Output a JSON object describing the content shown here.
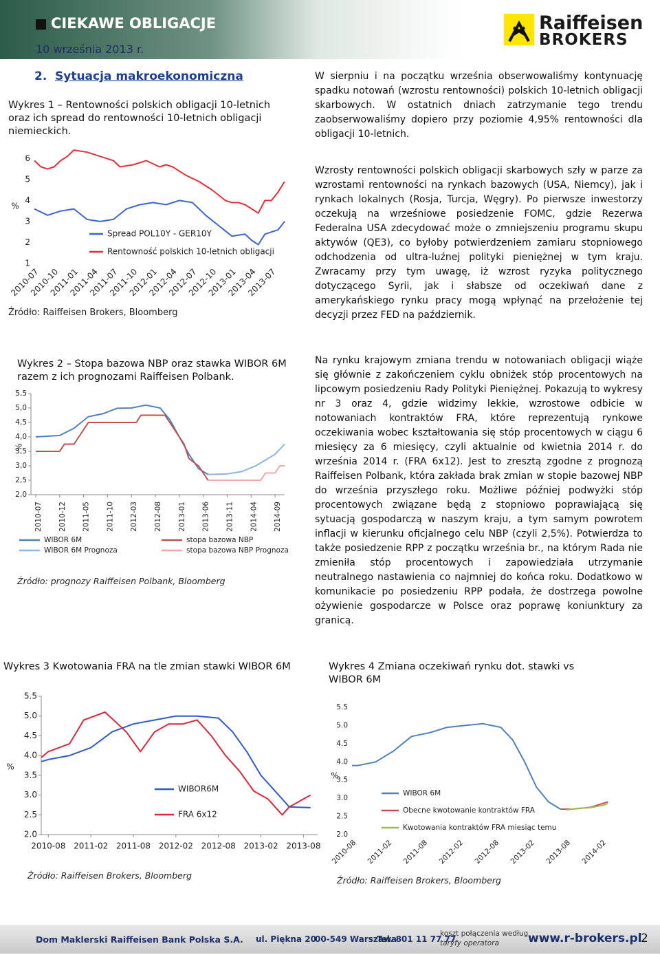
{
  "header": {
    "title": "CIEKAWE OBLIGACJE",
    "date": "10 września 2013 r.",
    "logo_line1": "Raiffeisen",
    "logo_line2": "BROKERS"
  },
  "section": {
    "number": "2.",
    "title": "Sytuacja makroekonomiczna"
  },
  "paragraphs": [
    "W sierpniu i na początku września obserwowaliśmy kontynuację spadku notowań (wzrostu rentowności) polskich 10-letnich obligacji skarbowych. W ostatnich dniach zatrzymanie tego trendu zaobserwowaliśmy dopiero przy poziomie 4,95% rentowności dla obligacji 10-letnich.",
    "Wzrosty rentowności polskich obligacji skarbowych szły w parze za wzrostami rentowności na rynkach bazowych (USA, Niemcy), jak i rynkach lokalnych (Rosja, Turcja, Węgry). Po pierwsze inwestorzy oczekują na wrześniowe posiedzenie FOMC, gdzie Rezerwa Federalna USA zdecydować może o zmniejszeniu programu skupu aktywów (QE3), co byłoby potwierdzeniem zamiaru stopniowego odchodzenia od ultra-luźnej polityki pieniężnej w tym kraju. Zwracamy przy tym uwagę, iż wzrost ryzyka politycznego dotyczącego Syrii, jak i słabsze od oczekiwań dane z amerykańskiego rynku pracy mogą wpłynąć na przełożenie tej decyzji przez FED na październik.",
    "Na rynku krajowym zmiana trendu w notowaniach obligacji wiąże się głównie z zakończeniem cyklu obniżek stóp procentowych na lipcowym posiedzeniu Rady Polityki Pieniężnej. Pokazują to wykresy nr 3 oraz 4, gdzie widzimy lekkie, wzrostowe odbicie w notowaniach kontraktów FRA, które reprezentują rynkowe oczekiwania wobec kształtowania się stóp procentowych w ciągu 6 miesięcy za 6 miesięcy, czyli aktualnie od kwietnia 2014 r. do września 2014 r. (FRA 6x12). Jest to zresztą zgodne z prognozą Raiffeisen Polbank, która zakłada brak zmian w stopie bazowej NBP do września przyszłego roku. Możliwe później podwyżki stóp procentowych związane będą z stopniowo poprawiającą się sytuacją gospodarczą w naszym kraju, a tym samym powrotem inflacji w kierunku oficjalnego celu NBP (czyli 2,5%). Potwierdza to także posiedzenie RPP z początku września br., na którym Rada nie zmieniła stóp procentowych i zapowiedziała utrzymanie neutralnego nastawienia co najmniej do końca roku. Dodatkowo w komunikacie po posiedzeniu RPP podała, że dostrzega powolne ożywienie gospodarcze w Polsce oraz poprawę koniunktury za granicą."
  ],
  "chart_data": [
    {
      "type": "line",
      "title": "Wykres 1 – Rentowności polskich obligacji 10-letnich oraz ich spread do rentowności 10-letnich obligacji niemieckich.",
      "source": "Źródło: Raiffeisen Brokers, Bloomberg",
      "y_label": "%",
      "xlim": [
        "2010-07",
        "2013-09"
      ],
      "xticks": [
        "2010-07",
        "2010-10",
        "2011-01",
        "2011-04",
        "2011-07",
        "2011-10",
        "2012-01",
        "2012-04",
        "2012-07",
        "2012-10",
        "2013-01",
        "2013-04",
        "2013-07"
      ],
      "ylim": [
        1,
        6.6
      ],
      "yticks": [
        1,
        2,
        3,
        4,
        5,
        6
      ],
      "series": [
        {
          "name": "Spread POL10Y - GER10Y",
          "color": "#3d62d6",
          "x": [
            "2010-07",
            "2010-09",
            "2010-11",
            "2011-01",
            "2011-03",
            "2011-05",
            "2011-07",
            "2011-09",
            "2011-11",
            "2012-01",
            "2012-03",
            "2012-05",
            "2012-07",
            "2012-09",
            "2012-11",
            "2013-01",
            "2013-03",
            "2013-04",
            "2013-05",
            "2013-06",
            "2013-07",
            "2013-08",
            "2013-09"
          ],
          "values": [
            3.6,
            3.3,
            3.5,
            3.6,
            3.1,
            3.0,
            3.1,
            3.6,
            3.8,
            3.9,
            3.8,
            4.0,
            3.9,
            3.3,
            2.8,
            2.3,
            2.4,
            2.1,
            1.9,
            2.4,
            2.5,
            2.6,
            3.0
          ]
        },
        {
          "name": "Rentowność polskich 10-letnich obligacji",
          "color": "#e0303a",
          "x": [
            "2010-07",
            "2010-08",
            "2010-09",
            "2010-10",
            "2010-11",
            "2010-12",
            "2011-01",
            "2011-03",
            "2011-05",
            "2011-07",
            "2011-08",
            "2011-10",
            "2011-12",
            "2012-02",
            "2012-03",
            "2012-04",
            "2012-06",
            "2012-08",
            "2012-10",
            "2012-12",
            "2013-01",
            "2013-02",
            "2013-03",
            "2013-04",
            "2013-05",
            "2013-06",
            "2013-07",
            "2013-08",
            "2013-09"
          ],
          "values": [
            5.9,
            5.6,
            5.5,
            5.6,
            5.9,
            6.1,
            6.4,
            6.3,
            6.1,
            5.9,
            5.6,
            5.7,
            5.9,
            5.6,
            5.7,
            5.6,
            5.2,
            4.9,
            4.5,
            4.0,
            3.9,
            3.9,
            3.8,
            3.6,
            3.4,
            4.0,
            4.0,
            4.4,
            4.9
          ]
        }
      ]
    },
    {
      "type": "line",
      "title": "Wykres 2 – Stopa bazowa NBP oraz stawka WIBOR 6M razem z ich prognozami Raiffeisen Polbank.",
      "source": "Źródło: prognozy Raiffeisen Polbank, Bloomberg",
      "y_label": "%",
      "xlim": [
        "2010-06",
        "2014-11"
      ],
      "xticks": [
        "2010-07",
        "2010-12",
        "2011-05",
        "2011-10",
        "2012-03",
        "2012-08",
        "2013-01",
        "2013-06",
        "2013-11",
        "2014-04",
        "2014-09"
      ],
      "ylim": [
        2,
        5.5
      ],
      "yticks": [
        {
          "value": 2,
          "label": "2,0"
        },
        {
          "value": 2.5,
          "label": "2,5"
        },
        {
          "value": 3,
          "label": "3,0"
        },
        {
          "value": 3.5,
          "label": "3,5"
        },
        {
          "value": 4,
          "label": "4,0"
        },
        {
          "value": 4.5,
          "label": "4,5"
        },
        {
          "value": 5,
          "label": "5,0"
        },
        {
          "value": 5.5,
          "label": "5,5"
        }
      ],
      "series": [
        {
          "name": "WIBOR 6M",
          "color": "#4f81bd",
          "x": [
            "2010-07",
            "2010-12",
            "2011-03",
            "2011-06",
            "2011-09",
            "2011-12",
            "2012-03",
            "2012-06",
            "2012-09",
            "2012-11",
            "2013-01",
            "2013-03",
            "2013-05",
            "2013-07"
          ],
          "values": [
            4.0,
            4.05,
            4.3,
            4.7,
            4.8,
            4.99,
            5.0,
            5.1,
            5.0,
            4.6,
            4.0,
            3.4,
            2.9,
            2.7
          ]
        },
        {
          "name": "stopa bazowa NBP",
          "color": "#c0504d",
          "x": [
            "2010-07",
            "2010-12",
            "2011-01",
            "2011-03",
            "2011-04",
            "2011-05",
            "2011-06",
            "2012-04",
            "2012-05",
            "2012-10",
            "2012-11",
            "2012-12",
            "2013-01",
            "2013-02",
            "2013-03",
            "2013-05",
            "2013-06",
            "2013-07"
          ],
          "values": [
            3.5,
            3.5,
            3.75,
            3.75,
            4.0,
            4.25,
            4.5,
            4.5,
            4.75,
            4.75,
            4.5,
            4.25,
            4.0,
            3.75,
            3.25,
            3.0,
            2.75,
            2.5
          ]
        },
        {
          "name": "WIBOR 6M Prognoza",
          "color": "#8db4e2",
          "x": [
            "2013-07",
            "2013-11",
            "2014-02",
            "2014-05",
            "2014-09",
            "2014-11"
          ],
          "values": [
            2.7,
            2.72,
            2.8,
            3.0,
            3.4,
            3.75
          ]
        },
        {
          "name": "stopa bazowa NBP Prognoza",
          "color": "#f4a6a6",
          "x": [
            "2013-07",
            "2014-06",
            "2014-07",
            "2014-09",
            "2014-10",
            "2014-11"
          ],
          "values": [
            2.5,
            2.5,
            2.75,
            2.75,
            3.0,
            3.0
          ]
        }
      ]
    },
    {
      "type": "line",
      "title": "Wykres 3 Kwotowania FRA na tle zmian stawki WIBOR 6M",
      "source": "Źródło: Raiffeisen Brokers, Bloomberg",
      "y_label": "%",
      "xlim": [
        "2010-07",
        "2013-10"
      ],
      "xticks": [
        "2010-08",
        "2011-02",
        "2011-08",
        "2012-02",
        "2012-08",
        "2013-02",
        "2013-08"
      ],
      "ylim": [
        2,
        5.5
      ],
      "yticks": [
        {
          "value": 2,
          "label": "2.0"
        },
        2.5,
        {
          "value": 3,
          "label": "3.0"
        },
        3.5,
        {
          "value": 4,
          "label": "4.0"
        },
        4.5,
        {
          "value": 5,
          "label": "5.0"
        },
        5.5
      ],
      "series": [
        {
          "name": "WIBOR6M",
          "color": "#2e59c8",
          "x": [
            "2010-07",
            "2010-08",
            "2010-11",
            "2011-02",
            "2011-05",
            "2011-08",
            "2011-11",
            "2012-02",
            "2012-05",
            "2012-08",
            "2012-10",
            "2012-12",
            "2013-02",
            "2013-04",
            "2013-06",
            "2013-09"
          ],
          "values": [
            3.85,
            3.9,
            4.0,
            4.2,
            4.6,
            4.8,
            4.9,
            5.0,
            5.0,
            4.95,
            4.6,
            4.1,
            3.5,
            3.1,
            2.7,
            2.68
          ]
        },
        {
          "name": "FRA 6x12",
          "color": "#d7263d",
          "x": [
            "2010-07",
            "2010-08",
            "2010-11",
            "2011-01",
            "2011-04",
            "2011-07",
            "2011-09",
            "2011-11",
            "2012-01",
            "2012-03",
            "2012-05",
            "2012-07",
            "2012-09",
            "2012-11",
            "2013-01",
            "2013-03",
            "2013-05",
            "2013-06",
            "2013-07",
            "2013-08",
            "2013-09"
          ],
          "values": [
            3.95,
            4.1,
            4.3,
            4.9,
            5.1,
            4.6,
            4.1,
            4.6,
            4.8,
            4.8,
            4.9,
            4.5,
            4.0,
            3.6,
            3.1,
            2.9,
            2.5,
            2.7,
            2.8,
            2.9,
            3.0
          ]
        }
      ]
    },
    {
      "type": "line",
      "title": "Wykres 4 Zmiana oczekiwań rynku dot. stawki vs WIBOR 6M",
      "source": "Źródło: Raiffeisen Brokers, Bloomberg",
      "y_label": "%",
      "xlim": [
        "2010-08",
        "2014-04"
      ],
      "xticks": [
        "2010-08",
        "2011-02",
        "2011-08",
        "2012-02",
        "2012-08",
        "2013-02",
        "2013-08",
        "2014-02"
      ],
      "ylim": [
        2,
        5.5
      ],
      "yticks": [
        {
          "value": 2,
          "label": "2.0"
        },
        2.5,
        {
          "value": 3,
          "label": "3.0"
        },
        3.5,
        {
          "value": 4,
          "label": "4.0"
        },
        4.5,
        {
          "value": 5,
          "label": "5.0"
        },
        5.5
      ],
      "series": [
        {
          "name": "WIBOR 6M",
          "color": "#4f81bd",
          "x": [
            "2010-08",
            "2010-09",
            "2010-12",
            "2011-03",
            "2011-06",
            "2011-09",
            "2011-12",
            "2012-03",
            "2012-06",
            "2012-09",
            "2012-11",
            "2013-01",
            "2013-03",
            "2013-05",
            "2013-07"
          ],
          "values": [
            3.9,
            3.9,
            4.0,
            4.3,
            4.7,
            4.8,
            4.95,
            5.0,
            5.05,
            4.95,
            4.6,
            4.0,
            3.3,
            2.9,
            2.7
          ]
        },
        {
          "name": "Obecne kwotowanie kontraktów FRA",
          "color": "#c0504d",
          "x": [
            "2013-07",
            "2013-09",
            "2013-12",
            "2014-02",
            "2014-03"
          ],
          "values": [
            2.7,
            2.7,
            2.75,
            2.85,
            2.9
          ]
        },
        {
          "name": "Kwotowania kontraktów FRA miesiąc temu",
          "color": "#9bbb59",
          "x": [
            "2013-08",
            "2013-10",
            "2013-12",
            "2014-02",
            "2014-03"
          ],
          "values": [
            2.68,
            2.72,
            2.74,
            2.8,
            2.85
          ]
        }
      ]
    }
  ],
  "footer": {
    "company": "Dom Maklerski Raiffeisen Bank Polska S.A.",
    "street": "ul. Piękna 20",
    "city": "00-549 Warszawa",
    "phone": "Tel. 801 11 77 77",
    "cost_line1": "koszt połączenia według",
    "cost_line2": "taryfy operatora",
    "website": "www.r-brokers.pl",
    "page": "2"
  }
}
